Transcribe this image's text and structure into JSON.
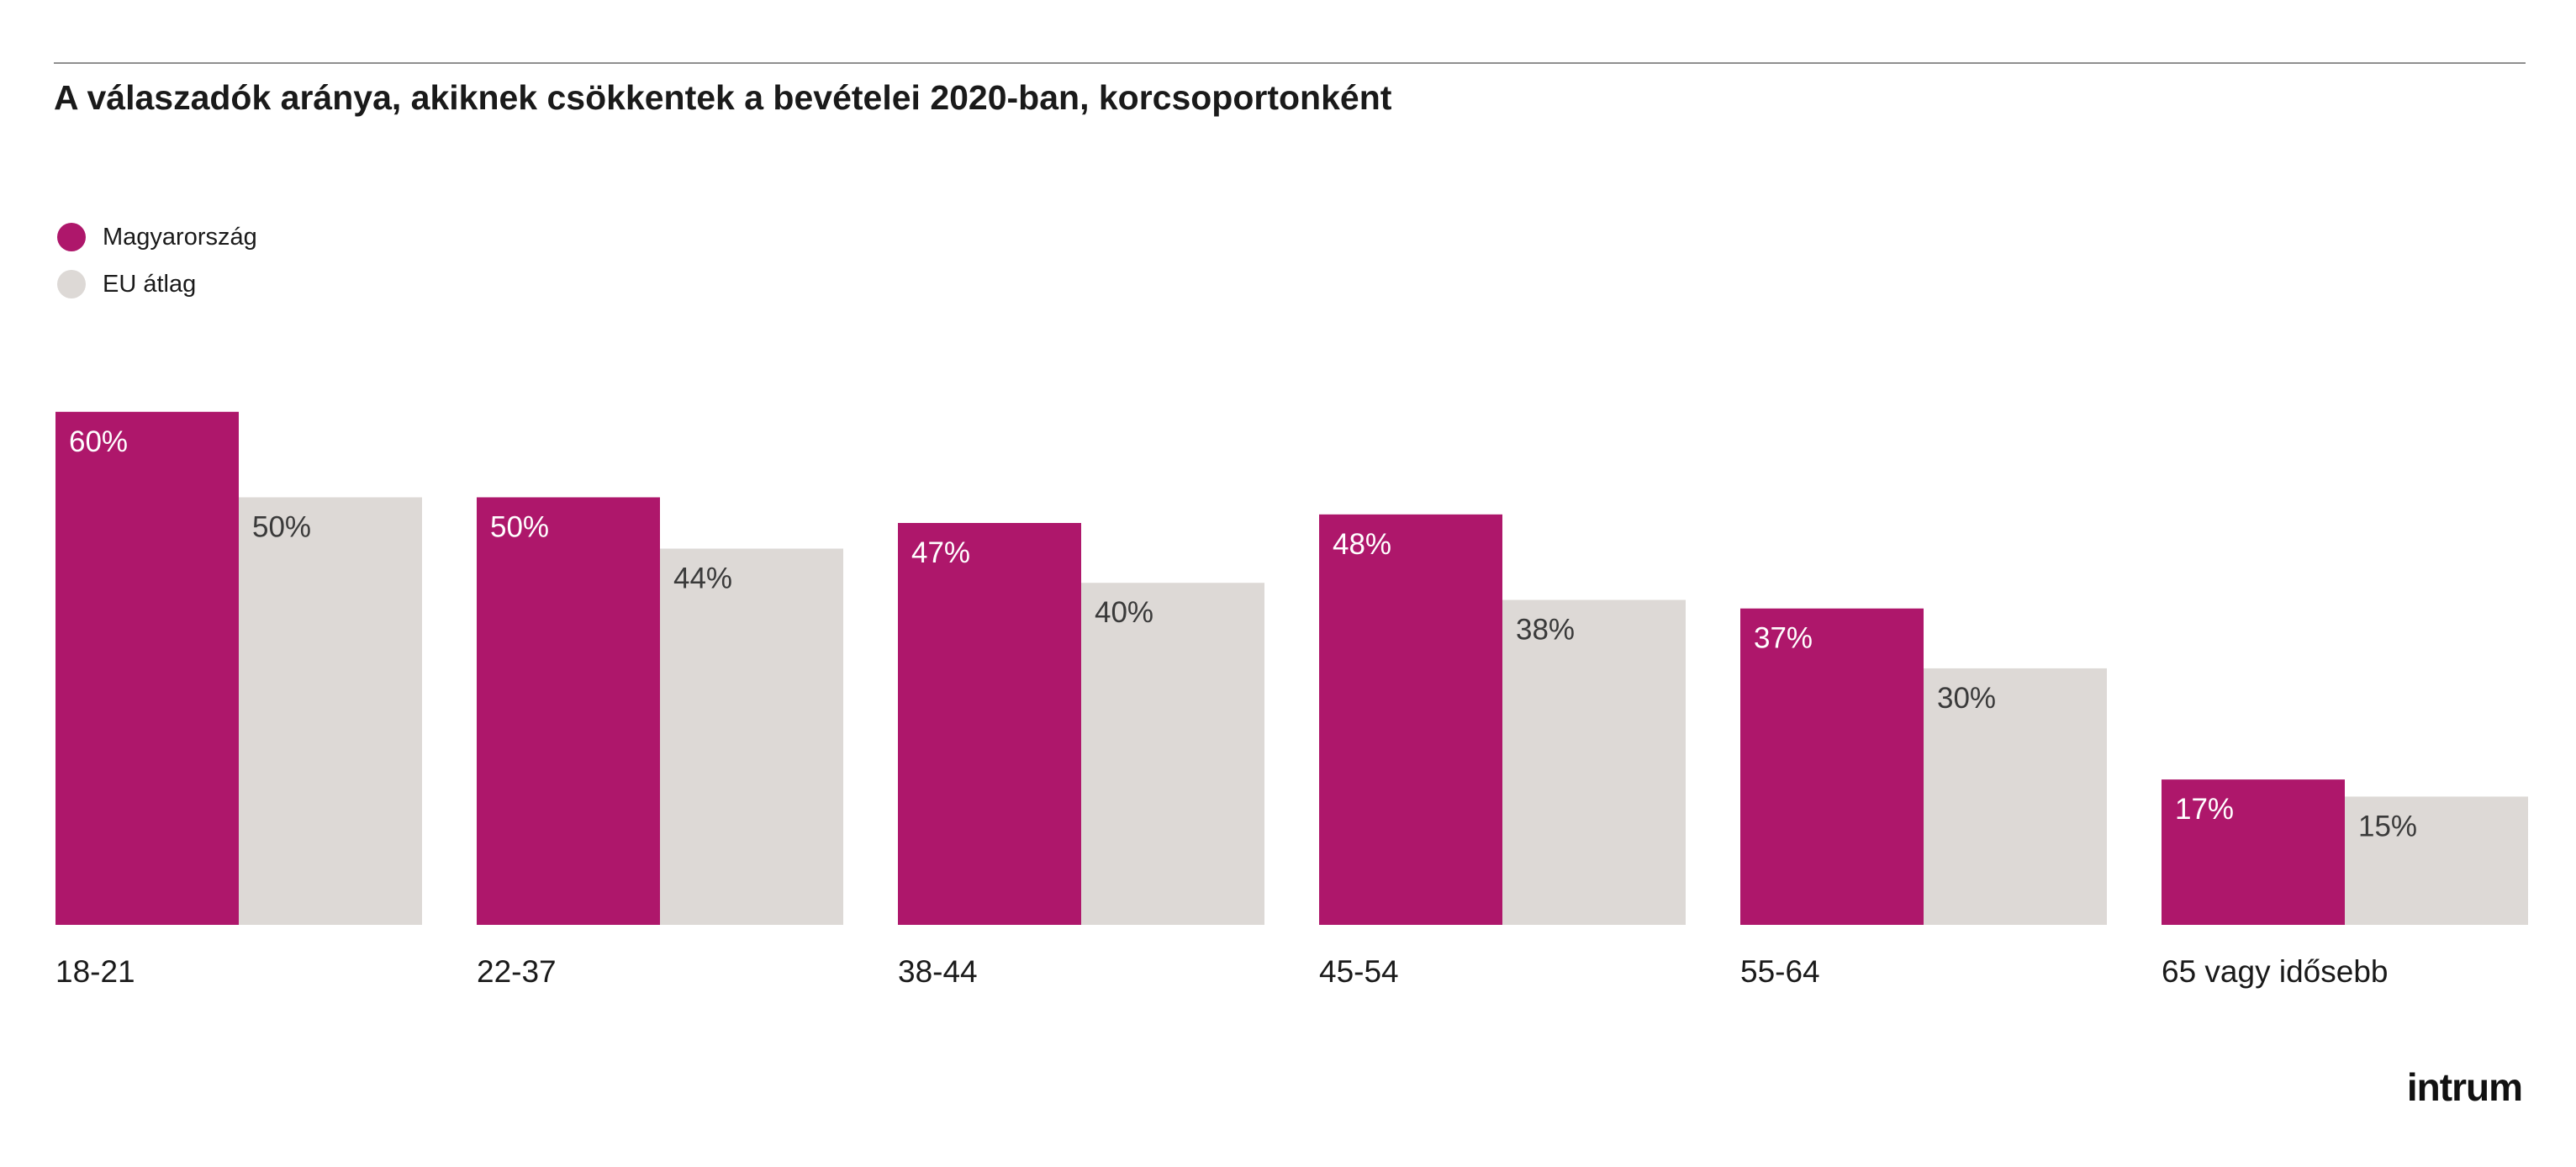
{
  "title": "A válaszadók aránya, akiknek csökkentek a bevételei 2020-ban, korcsoportonként",
  "legend": [
    {
      "label": "Magyarország",
      "color": "#ae176b"
    },
    {
      "label": "EU átlag",
      "color": "#ddd9d6"
    }
  ],
  "brand": {
    "logo_text": "intrum"
  },
  "chart_data": {
    "type": "bar",
    "title": "A válaszadók aránya, akiknek csökkentek a bevételei 2020-ban, korcsoportonként",
    "xlabel": "",
    "ylabel": "",
    "ylim": [
      0,
      60
    ],
    "grid": false,
    "legend_position": "top-left",
    "categories": [
      "18-21",
      "22-37",
      "38-44",
      "45-54",
      "55-64",
      "65 vagy idősebb"
    ],
    "series": [
      {
        "name": "Magyarország",
        "color": "#ae176b",
        "label_color": "#ffffff",
        "values": [
          60,
          50,
          47,
          48,
          37,
          17
        ],
        "labels": [
          "60%",
          "50%",
          "47%",
          "48%",
          "37%",
          "17%"
        ]
      },
      {
        "name": "EU átlag",
        "color": "#ddd9d6",
        "label_color": "#3a3a3a",
        "values": [
          50,
          44,
          40,
          38,
          30,
          15
        ],
        "labels": [
          "50%",
          "44%",
          "40%",
          "38%",
          "30%",
          "15%"
        ]
      }
    ]
  }
}
